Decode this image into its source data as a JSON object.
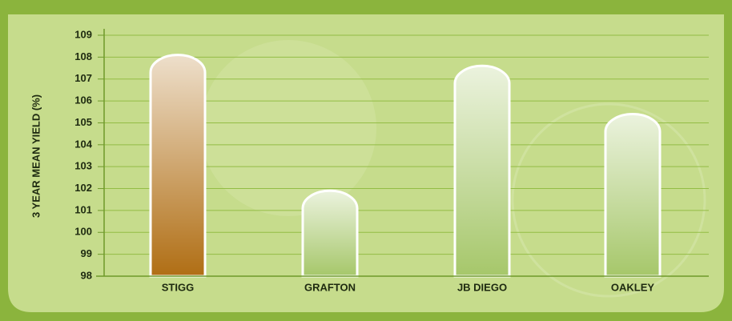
{
  "chart_data": {
    "type": "bar",
    "y_axis_label": "3 YEAR MEAN YIELD (%)",
    "categories": [
      "STIGG",
      "GRAFTON",
      "JB DIEGO",
      "OAKLEY"
    ],
    "values": [
      108.1,
      101.9,
      107.6,
      105.4
    ],
    "colors": [
      "#b06e14",
      "#a6c76a",
      "#a6c76a",
      "#a6c76a"
    ],
    "ylim": [
      98,
      109
    ],
    "yticks": [
      98,
      99,
      100,
      101,
      102,
      103,
      104,
      105,
      106,
      107,
      108,
      109
    ],
    "grid": true
  }
}
